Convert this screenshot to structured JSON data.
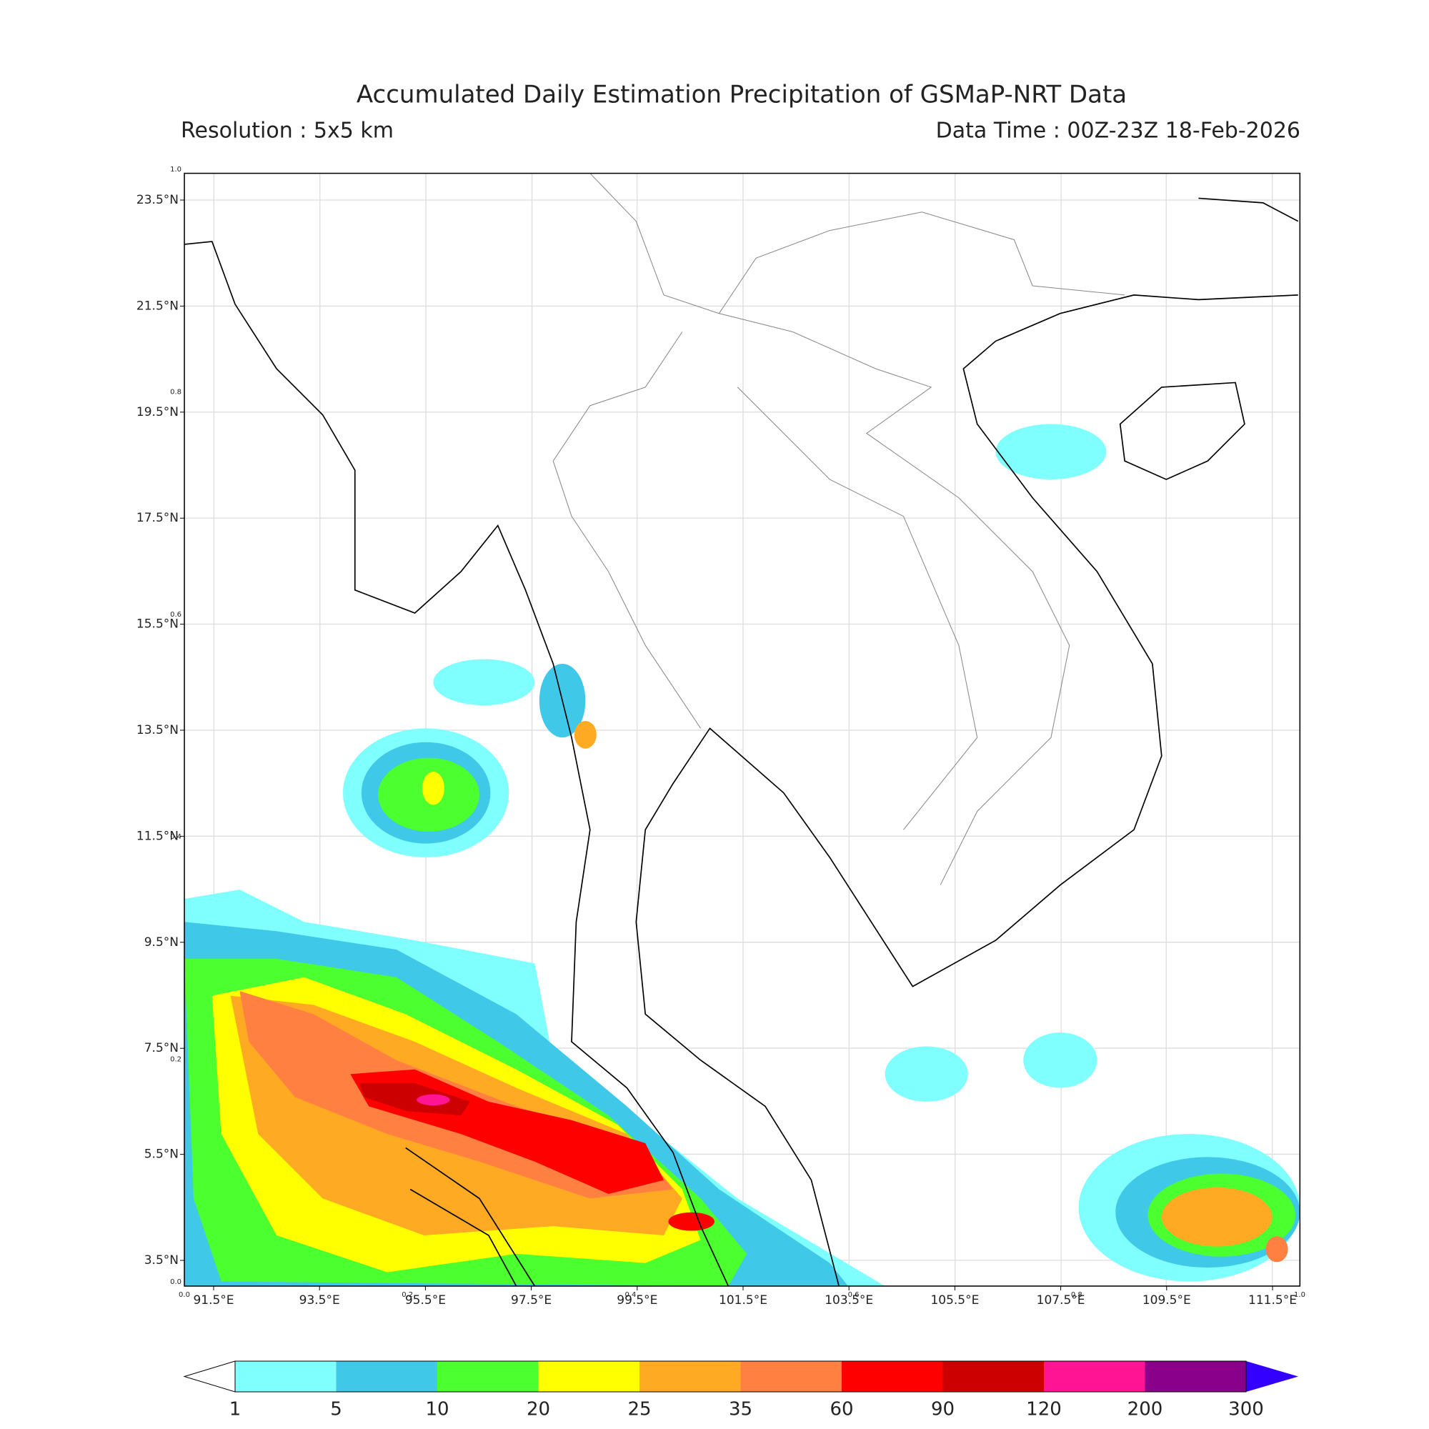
{
  "header": {
    "title": "Accumulated Daily Estimation Precipitation of GSMaP-NRT Data",
    "resolution": "Resolution : 5x5 km",
    "data_time": "Data Time : 00Z-23Z 18-Feb-2026"
  },
  "map": {
    "lon_ticks": [
      "91.5°E",
      "93.5°E",
      "95.5°E",
      "97.5°E",
      "99.5°E",
      "101.5°E",
      "103.5°E",
      "105.5°E",
      "107.5°E",
      "109.5°E",
      "111.5°E"
    ],
    "lat_ticks": [
      "23.5°N",
      "21.5°N",
      "19.5°N",
      "17.5°N",
      "15.5°N",
      "13.5°N",
      "11.5°N",
      "9.5°N",
      "7.5°N",
      "5.5°N",
      "3.5°N"
    ],
    "frame_ticks": [
      "0.0",
      "0.2",
      "0.4",
      "0.6",
      "0.8",
      "1.0"
    ]
  },
  "colorbar": {
    "levels": [
      "1",
      "5",
      "10",
      "20",
      "25",
      "35",
      "60",
      "90",
      "120",
      "200",
      "300"
    ],
    "colors": [
      "#80ffff",
      "#40c8e8",
      "#4cff2e",
      "#ffff00",
      "#ffaa22",
      "#ff8040",
      "#ff0000",
      "#cc0000",
      "#ff1493",
      "#8b008b"
    ],
    "under_color": "#ffffff",
    "over_color": "#3300ff"
  }
}
